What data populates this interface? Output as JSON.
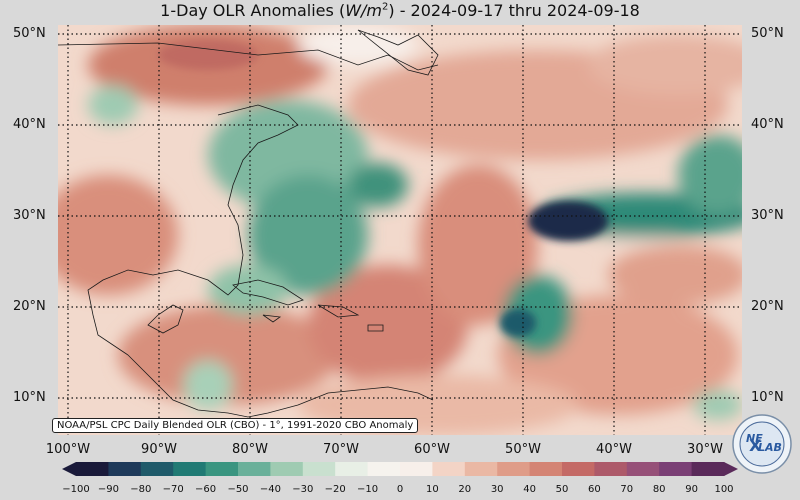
{
  "title": {
    "prefix": "1-Day OLR Anomalies (",
    "unit_base": "W/m",
    "unit_exp": "2",
    "suffix": ") - 2024-09-17 thru 2024-09-18"
  },
  "credit": "NOAA/PSL CPC Daily Blended OLR (CBO) - 1°, 1991-2020 CBO Anomaly",
  "lat_labels": [
    "50°N",
    "40°N",
    "30°N",
    "20°N",
    "10°N"
  ],
  "lon_labels": [
    "100°W",
    "90°W",
    "80°W",
    "70°W",
    "60°W",
    "50°W",
    "40°W",
    "30°W"
  ],
  "colorbar": {
    "ticks": [
      "−100",
      "−90",
      "−80",
      "−70",
      "−60",
      "−50",
      "−40",
      "−30",
      "−20",
      "−10",
      "0",
      "10",
      "20",
      "30",
      "40",
      "50",
      "60",
      "70",
      "80",
      "90",
      "100"
    ],
    "colors": [
      "#1a1a3a",
      "#1e3a5a",
      "#1f5a6a",
      "#207a74",
      "#3a9580",
      "#6ab09a",
      "#9fcbb2",
      "#c9e0cf",
      "#e8efe6",
      "#f6f3ee",
      "#f7efea",
      "#f3d4c6",
      "#eab8a4",
      "#df9c88",
      "#d48474",
      "#c46a66",
      "#ad5a6a",
      "#965078",
      "#7a3f75",
      "#5a2a5a"
    ]
  },
  "logo": {
    "text_top": "NE",
    "text_bottom": "LAB"
  },
  "colors": {
    "background": "#d9d9d9",
    "negative_anomaly": "#2e8a78",
    "positive_anomaly": "#d48474"
  }
}
